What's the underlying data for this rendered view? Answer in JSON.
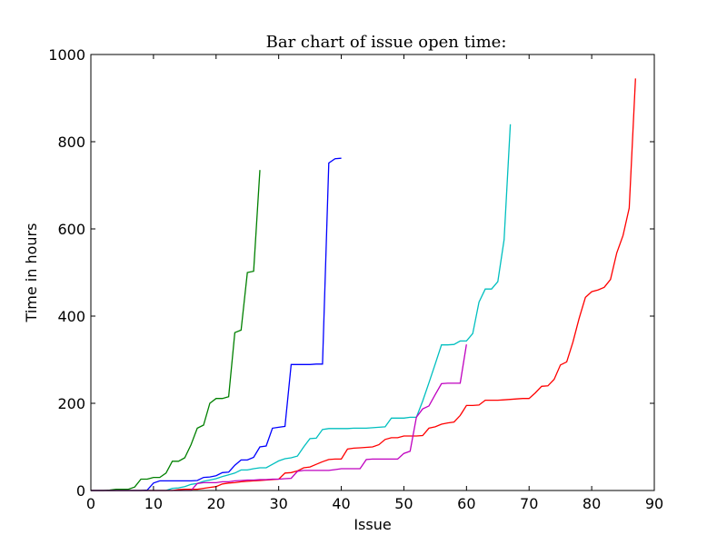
{
  "chart_data": {
    "type": "line",
    "title": "Bar chart of issue open time:",
    "xlabel": "Issue",
    "ylabel": "Time in hours",
    "xlim": [
      0,
      90
    ],
    "ylim": [
      0,
      1000
    ],
    "xticks": [
      0,
      10,
      20,
      30,
      40,
      50,
      60,
      70,
      80,
      90
    ],
    "yticks": [
      0,
      200,
      400,
      600,
      800,
      1000
    ],
    "grid": false,
    "legend": "none",
    "series": [
      {
        "color": "#008000",
        "x": [
          0,
          1,
          2,
          3,
          4,
          5,
          6,
          7,
          8,
          9,
          10,
          11,
          12,
          13,
          14,
          15,
          16,
          17,
          18,
          19,
          20,
          21,
          22,
          23,
          24,
          25,
          26,
          27
        ],
        "y": [
          0,
          0,
          0,
          1,
          3,
          3,
          3,
          8,
          26,
          26,
          30,
          30,
          40,
          67,
          67,
          75,
          105,
          143,
          150,
          200,
          211,
          211,
          215,
          362,
          368,
          500,
          503,
          735
        ]
      },
      {
        "color": "#0000ff",
        "x": [
          0,
          1,
          2,
          3,
          4,
          5,
          6,
          7,
          8,
          9,
          10,
          11,
          12,
          13,
          14,
          15,
          16,
          17,
          18,
          19,
          20,
          21,
          22,
          23,
          24,
          25,
          26,
          27,
          28,
          29,
          30,
          31,
          32,
          33,
          34,
          35,
          36,
          37,
          38,
          39,
          40
        ],
        "y": [
          0,
          0,
          0,
          0,
          0,
          0,
          0,
          0,
          0,
          1,
          17,
          22,
          22,
          22,
          22,
          22,
          22,
          23,
          30,
          31,
          34,
          41,
          42,
          58,
          70,
          70,
          76,
          100,
          102,
          143,
          145,
          147,
          289,
          289,
          289,
          289,
          290,
          290,
          751,
          761,
          762
        ]
      },
      {
        "color": "#00bfbf",
        "x": [
          0,
          1,
          2,
          3,
          4,
          5,
          6,
          7,
          8,
          9,
          10,
          11,
          12,
          13,
          14,
          15,
          16,
          17,
          18,
          19,
          20,
          21,
          22,
          23,
          24,
          25,
          26,
          27,
          28,
          29,
          30,
          31,
          32,
          33,
          34,
          35,
          36,
          37,
          38,
          39,
          40,
          41,
          42,
          43,
          44,
          45,
          46,
          47,
          48,
          49,
          50,
          51,
          52,
          53,
          54,
          55,
          56,
          57,
          58,
          59,
          60,
          61,
          62,
          63,
          64,
          65,
          66,
          67
        ],
        "y": [
          0,
          0,
          0,
          0,
          0,
          0,
          0,
          0,
          0,
          0,
          0,
          0,
          0,
          5,
          6,
          9,
          14,
          16,
          21,
          24,
          27,
          32,
          36,
          40,
          47,
          47,
          50,
          52,
          52,
          60,
          68,
          73,
          75,
          79,
          100,
          119,
          120,
          140,
          142,
          142,
          142,
          142,
          143,
          143,
          143,
          144,
          145,
          146,
          166,
          166,
          166,
          168,
          168,
          205,
          247,
          290,
          334,
          334,
          335,
          343,
          343,
          360,
          432,
          462,
          462,
          479,
          575,
          840
        ]
      },
      {
        "color": "#ff0000",
        "x": [
          0,
          1,
          2,
          3,
          4,
          5,
          6,
          7,
          8,
          9,
          10,
          11,
          12,
          13,
          14,
          15,
          16,
          17,
          18,
          19,
          20,
          21,
          22,
          23,
          24,
          25,
          26,
          27,
          28,
          29,
          30,
          31,
          32,
          33,
          34,
          35,
          36,
          37,
          38,
          39,
          40,
          41,
          42,
          43,
          44,
          45,
          46,
          47,
          48,
          49,
          50,
          51,
          52,
          53,
          54,
          55,
          56,
          57,
          58,
          59,
          60,
          61,
          62,
          63,
          64,
          65,
          66,
          67,
          68,
          69,
          70,
          71,
          72,
          73,
          74,
          75,
          76,
          77,
          78,
          79,
          80,
          81,
          82,
          83,
          84,
          85,
          86,
          87
        ],
        "y": [
          0,
          0,
          0,
          0,
          0,
          0,
          0,
          0,
          0,
          0,
          0,
          0,
          0,
          0,
          2,
          3,
          3,
          3,
          5,
          7,
          9,
          15,
          17,
          18,
          20,
          21,
          22,
          23,
          24,
          25,
          26,
          40,
          41,
          45,
          52,
          54,
          60,
          66,
          71,
          72,
          72,
          95,
          97,
          98,
          99,
          100,
          105,
          117,
          121,
          121,
          125,
          125,
          125,
          126,
          143,
          146,
          152,
          155,
          157,
          172,
          195,
          195,
          196,
          207,
          207,
          207,
          208,
          209,
          210,
          211,
          211,
          224,
          239,
          240,
          255,
          288,
          295,
          340,
          395,
          443,
          456,
          460,
          466,
          484,
          545,
          585,
          648,
          945
        ]
      },
      {
        "color": "#bf00bf",
        "x": [
          0,
          1,
          2,
          3,
          4,
          5,
          6,
          7,
          8,
          9,
          10,
          11,
          12,
          13,
          14,
          15,
          16,
          17,
          18,
          19,
          20,
          21,
          22,
          23,
          24,
          25,
          26,
          27,
          28,
          29,
          30,
          31,
          32,
          33,
          34,
          35,
          36,
          37,
          38,
          39,
          40,
          41,
          42,
          43,
          44,
          45,
          46,
          47,
          48,
          49,
          50,
          51,
          52,
          53,
          54,
          55,
          56,
          57,
          58,
          59,
          60
        ],
        "y": [
          0,
          0,
          0,
          0,
          0,
          0,
          0,
          0,
          0,
          0,
          0,
          0,
          0,
          0,
          0,
          0,
          0,
          16,
          18,
          18,
          18,
          20,
          20,
          22,
          23,
          24,
          24,
          25,
          25,
          26,
          26,
          27,
          28,
          44,
          46,
          46,
          46,
          46,
          46,
          48,
          50,
          50,
          50,
          50,
          71,
          72,
          72,
          72,
          72,
          72,
          85,
          90,
          168,
          187,
          194,
          220,
          245,
          246,
          246,
          246,
          335
        ]
      }
    ]
  }
}
